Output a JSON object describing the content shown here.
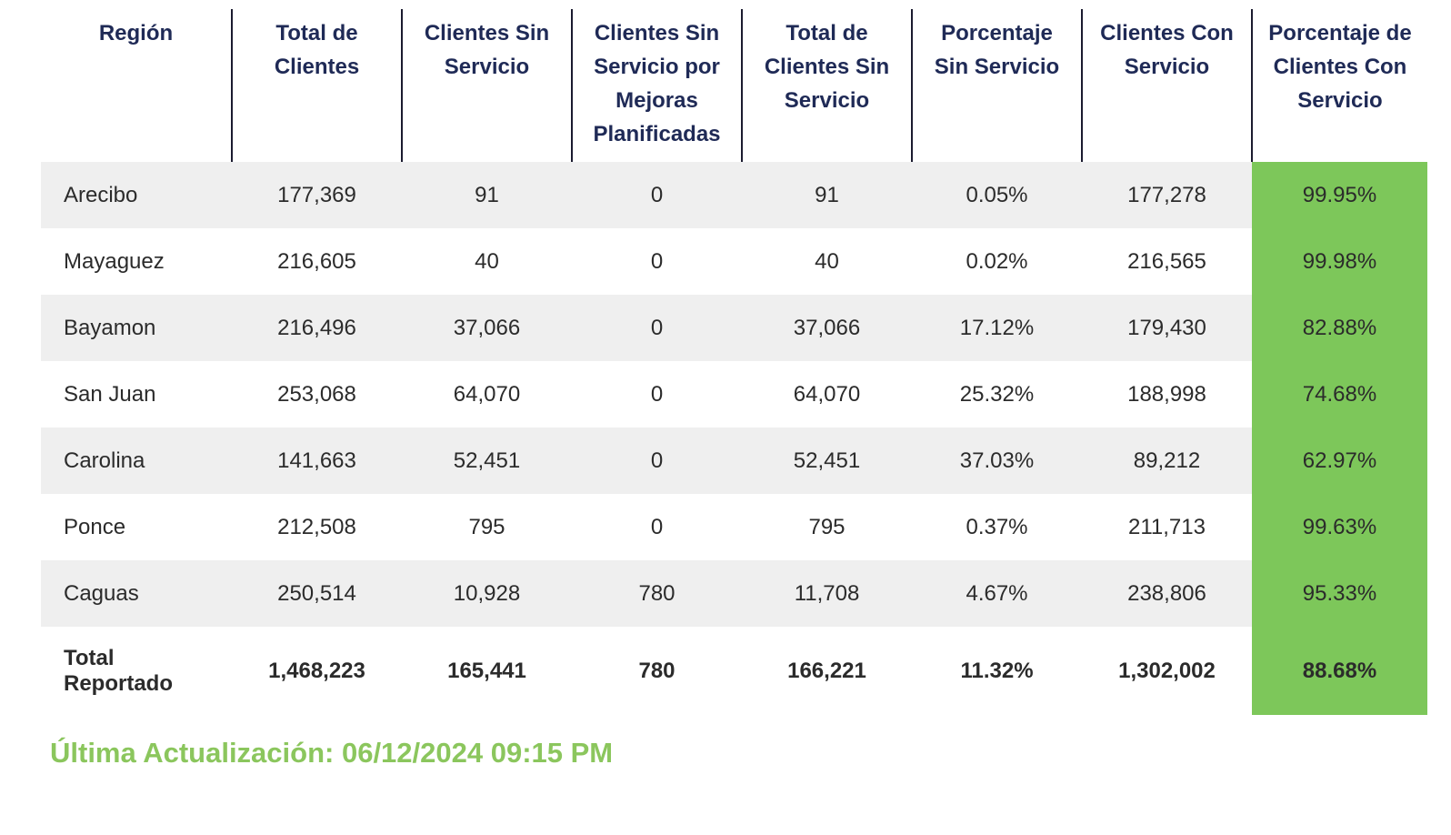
{
  "colors": {
    "header_text": "#1F2A56",
    "body_text": "#2B2B2B",
    "stripe_gray": "#EFEFEF",
    "highlight_green": "#7DC75A",
    "footer_green": "#8BC65D",
    "divider_dark": "#1B1B2F"
  },
  "chart_data": {
    "type": "table",
    "title": "",
    "columns": [
      "Región",
      "Total de Clientes",
      "Clientes Sin Servicio",
      "Clientes Sin Servicio por Mejoras Planificadas",
      "Total de Clientes Sin Servicio",
      "Porcentaje Sin Servicio",
      "Clientes Con Servicio",
      "Porcentaje de Clientes Con Servicio"
    ],
    "rows": [
      [
        "Arecibo",
        "177,369",
        "91",
        "0",
        "91",
        "0.05%",
        "177,278",
        "99.95%"
      ],
      [
        "Mayaguez",
        "216,605",
        "40",
        "0",
        "40",
        "0.02%",
        "216,565",
        "99.98%"
      ],
      [
        "Bayamon",
        "216,496",
        "37,066",
        "0",
        "37,066",
        "17.12%",
        "179,430",
        "82.88%"
      ],
      [
        "San Juan",
        "253,068",
        "64,070",
        "0",
        "64,070",
        "25.32%",
        "188,998",
        "74.68%"
      ],
      [
        "Carolina",
        "141,663",
        "52,451",
        "0",
        "52,451",
        "37.03%",
        "89,212",
        "62.97%"
      ],
      [
        "Ponce",
        "212,508",
        "795",
        "0",
        "795",
        "0.37%",
        "211,713",
        "99.63%"
      ],
      [
        "Caguas",
        "250,514",
        "10,928",
        "780",
        "11,708",
        "4.67%",
        "238,806",
        "95.33%"
      ]
    ],
    "total_row": [
      "Total Reportado",
      "1,468,223",
      "165,441",
      "780",
      "166,221",
      "11.32%",
      "1,302,002",
      "88.68%"
    ],
    "highlight_column": "Porcentaje de Clientes Con Servicio",
    "layout_hints": {
      "striped_rows": true,
      "header_dividers": true,
      "highlight_column_background": "green"
    }
  },
  "footer": {
    "last_update_label": "Última Actualización: 06/12/2024 09:15 PM"
  }
}
